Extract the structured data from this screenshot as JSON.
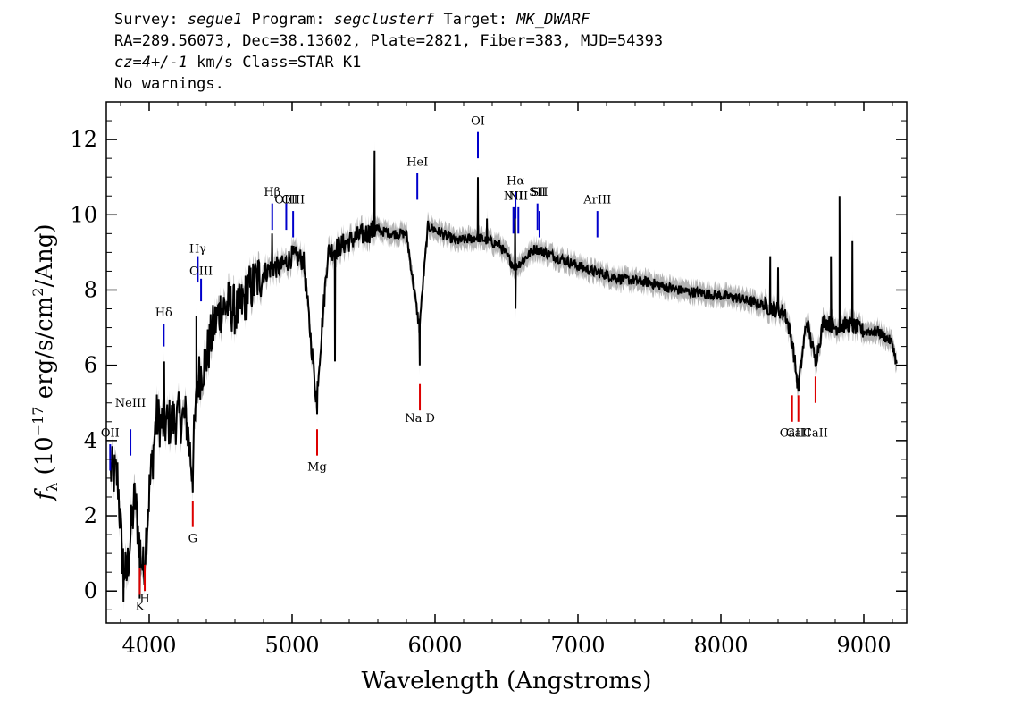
{
  "header": {
    "line1": {
      "survey_key": "Survey: ",
      "survey_value": "segue1",
      "program_key": " Program: ",
      "program_value": "segclusterf",
      "target_key": " Target: ",
      "target_value": "MK_DWARF"
    },
    "line2": "RA=289.56073, Dec=38.13602, Plate=2821, Fiber=383, MJD=54393",
    "line3": {
      "cz_value": "cz=4+/-1",
      "cz_rest": " km/s Class=STAR K1"
    },
    "line4": "No warnings."
  },
  "chart_data": {
    "type": "line",
    "xlabel": "Wavelength (Angstroms)",
    "ylabel_prefix": "f",
    "ylabel_sub": "λ",
    "ylabel_mid": " (10",
    "ylabel_exp1": "−17",
    "ylabel_mid2": " erg/s/cm",
    "ylabel_exp2": "2",
    "ylabel_end": "/Ang)",
    "xlim": [
      3700,
      9300
    ],
    "ylim": [
      -0.85,
      13.0
    ],
    "x_ticks": [
      4000,
      5000,
      6000,
      7000,
      8000,
      9000
    ],
    "y_ticks": [
      0,
      2,
      4,
      6,
      8,
      10,
      12
    ],
    "grid": false,
    "colors": {
      "spectrum": "#000000",
      "error_band": "#b4b4b4",
      "emission_lines": "#0000cc",
      "absorption_lines": "#dd0000"
    },
    "spectrum_points": [
      {
        "x": 3730,
        "y": 3.2
      },
      {
        "x": 3780,
        "y": 3.0
      },
      {
        "x": 3810,
        "y": 1.0
      },
      {
        "x": 3840,
        "y": 0.3
      },
      {
        "x": 3870,
        "y": 1.5
      },
      {
        "x": 3900,
        "y": 2.5
      },
      {
        "x": 3930,
        "y": 1.3
      },
      {
        "x": 3960,
        "y": 0.5
      },
      {
        "x": 4000,
        "y": 2.6
      },
      {
        "x": 4050,
        "y": 4.6
      },
      {
        "x": 4100,
        "y": 4.4
      },
      {
        "x": 4150,
        "y": 4.5
      },
      {
        "x": 4200,
        "y": 4.6
      },
      {
        "x": 4260,
        "y": 4.6
      },
      {
        "x": 4300,
        "y": 3.2
      },
      {
        "x": 4340,
        "y": 5.6
      },
      {
        "x": 4400,
        "y": 6.2
      },
      {
        "x": 4450,
        "y": 7.0
      },
      {
        "x": 4500,
        "y": 7.5
      },
      {
        "x": 4560,
        "y": 7.6
      },
      {
        "x": 4620,
        "y": 7.4
      },
      {
        "x": 4700,
        "y": 8.0
      },
      {
        "x": 4780,
        "y": 8.4
      },
      {
        "x": 4860,
        "y": 8.6
      },
      {
        "x": 4920,
        "y": 8.6
      },
      {
        "x": 5000,
        "y": 8.9
      },
      {
        "x": 5080,
        "y": 8.8
      },
      {
        "x": 5170,
        "y": 5.1
      },
      {
        "x": 5250,
        "y": 9.0
      },
      {
        "x": 5350,
        "y": 9.2
      },
      {
        "x": 5450,
        "y": 9.4
      },
      {
        "x": 5580,
        "y": 9.6
      },
      {
        "x": 5700,
        "y": 9.5
      },
      {
        "x": 5800,
        "y": 9.5
      },
      {
        "x": 5890,
        "y": 7.0
      },
      {
        "x": 5950,
        "y": 9.7
      },
      {
        "x": 6050,
        "y": 9.5
      },
      {
        "x": 6150,
        "y": 9.3
      },
      {
        "x": 6300,
        "y": 9.4
      },
      {
        "x": 6450,
        "y": 9.2
      },
      {
        "x": 6560,
        "y": 8.6
      },
      {
        "x": 6700,
        "y": 9.1
      },
      {
        "x": 6900,
        "y": 8.8
      },
      {
        "x": 7100,
        "y": 8.5
      },
      {
        "x": 7300,
        "y": 8.3
      },
      {
        "x": 7500,
        "y": 8.2
      },
      {
        "x": 7700,
        "y": 8.0
      },
      {
        "x": 7900,
        "y": 7.9
      },
      {
        "x": 8100,
        "y": 7.8
      },
      {
        "x": 8300,
        "y": 7.6
      },
      {
        "x": 8450,
        "y": 7.4
      },
      {
        "x": 8500,
        "y": 6.6
      },
      {
        "x": 8540,
        "y": 5.4
      },
      {
        "x": 8600,
        "y": 7.2
      },
      {
        "x": 8662,
        "y": 6.1
      },
      {
        "x": 8720,
        "y": 7.2
      },
      {
        "x": 8800,
        "y": 7.0
      },
      {
        "x": 8900,
        "y": 7.1
      },
      {
        "x": 9000,
        "y": 6.9
      },
      {
        "x": 9100,
        "y": 6.9
      },
      {
        "x": 9200,
        "y": 6.6
      },
      {
        "x": 9230,
        "y": 6.0
      }
    ],
    "spikes": [
      {
        "x": 4105,
        "y": 6.1
      },
      {
        "x": 4330,
        "y": 7.3
      },
      {
        "x": 4860,
        "y": 9.5
      },
      {
        "x": 5577,
        "y": 11.7
      },
      {
        "x": 6300,
        "y": 11.0
      },
      {
        "x": 6363,
        "y": 9.9
      },
      {
        "x": 6560,
        "y": 10.2
      },
      {
        "x": 8830,
        "y": 10.5
      },
      {
        "x": 8920,
        "y": 9.3
      },
      {
        "x": 8345,
        "y": 8.9
      },
      {
        "x": 8400,
        "y": 8.6
      },
      {
        "x": 8770,
        "y": 8.9
      }
    ],
    "dips": [
      {
        "x": 3820,
        "y": -0.3
      },
      {
        "x": 3934,
        "y": -0.2
      },
      {
        "x": 4305,
        "y": 2.6
      },
      {
        "x": 5175,
        "y": 4.7
      },
      {
        "x": 5893,
        "y": 6.0
      },
      {
        "x": 6563,
        "y": 7.5
      },
      {
        "x": 8544,
        "y": 5.3
      },
      {
        "x": 8665,
        "y": 6.0
      },
      {
        "x": 5300,
        "y": 6.1
      }
    ],
    "emission_lines": [
      {
        "label": "OII",
        "x": 3727,
        "y0": 3.2,
        "y1": 3.9,
        "label_y": 4.1
      },
      {
        "label": "NeIII",
        "x": 3869,
        "y0": 3.6,
        "y1": 4.3,
        "label_y": 4.9
      },
      {
        "label": "Hδ",
        "x": 4102,
        "y0": 6.5,
        "y1": 7.1,
        "label_y": 7.3
      },
      {
        "label": "Hγ",
        "x": 4340,
        "y0": 8.2,
        "y1": 8.9,
        "label_y": 9.0
      },
      {
        "label": "OIII",
        "x": 4363,
        "y0": 7.7,
        "y1": 8.3,
        "label_y": 8.4
      },
      {
        "label": "Hβ",
        "x": 4861,
        "y0": 9.6,
        "y1": 10.3,
        "label_y": 10.5
      },
      {
        "label": "OIII",
        "x": 4959,
        "y0": 9.6,
        "y1": 10.3,
        "label_y": 10.3
      },
      {
        "label": "OIII",
        "x": 5007,
        "y0": 9.4,
        "y1": 10.1,
        "label_y": 10.3
      },
      {
        "label": "HeI",
        "x": 5876,
        "y0": 10.4,
        "y1": 11.1,
        "label_y": 11.3
      },
      {
        "label": "OI",
        "x": 6300,
        "y0": 11.5,
        "y1": 12.2,
        "label_y": 12.4
      },
      {
        "label": "NII",
        "x": 6548,
        "y0": 9.5,
        "y1": 10.2,
        "label_y": 10.4
      },
      {
        "label": "Hα",
        "x": 6563,
        "y0": 9.9,
        "y1": 10.6,
        "label_y": 10.8
      },
      {
        "label": "NII",
        "x": 6583,
        "y0": 9.5,
        "y1": 10.2,
        "label_y": 10.4
      },
      {
        "label": "SII",
        "x": 6717,
        "y0": 9.6,
        "y1": 10.3,
        "label_y": 10.5
      },
      {
        "label": "SII",
        "x": 6731,
        "y0": 9.4,
        "y1": 10.1,
        "label_y": 10.5
      },
      {
        "label": "ArIII",
        "x": 7136,
        "y0": 9.4,
        "y1": 10.1,
        "label_y": 10.3
      }
    ],
    "absorption_lines": [
      {
        "label": "K",
        "x": 3934,
        "y0": -0.1,
        "y1": 0.6,
        "label_y": -0.5
      },
      {
        "label": "H",
        "x": 3969,
        "y0": 0.0,
        "y1": 0.7,
        "label_y": -0.3
      },
      {
        "label": "G",
        "x": 4305,
        "y0": 1.7,
        "y1": 2.4,
        "label_y": 1.3
      },
      {
        "label": "Mg",
        "x": 5175,
        "y0": 3.6,
        "y1": 4.3,
        "label_y": 3.2
      },
      {
        "label": "Na D",
        "x": 5894,
        "y0": 4.8,
        "y1": 5.5,
        "label_y": 4.5
      },
      {
        "label": "CaII",
        "x": 8498,
        "y0": 4.5,
        "y1": 5.2,
        "label_y": 4.1
      },
      {
        "label": "CaII",
        "x": 8542,
        "y0": 4.5,
        "y1": 5.2,
        "label_y": 4.1
      },
      {
        "label": "CaII",
        "x": 8662,
        "y0": 5.0,
        "y1": 5.7,
        "label_y": 4.1
      }
    ]
  }
}
